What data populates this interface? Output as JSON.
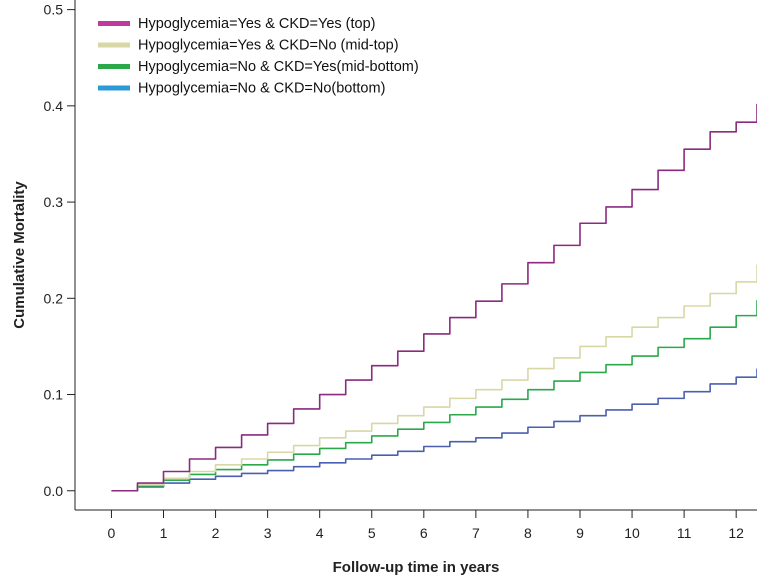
{
  "chart_data": {
    "type": "line",
    "title": "",
    "xlabel": "Follow-up time in years",
    "ylabel": "Cumulative Mortality",
    "xlim": [
      -0.7,
      12.4
    ],
    "ylim": [
      -0.02,
      0.51
    ],
    "x_ticks": [
      "0",
      "1",
      "2",
      "3",
      "4",
      "5",
      "6",
      "7",
      "8",
      "9",
      "10",
      "11",
      "12"
    ],
    "y_ticks": [
      "0.0",
      "0.1",
      "0.2",
      "0.3",
      "0.4",
      "0.5"
    ],
    "legend_position": "top-left",
    "series": [
      {
        "name": "Hypoglycemia=Yes & CKD=Yes (top)",
        "color": "#8b2a7e",
        "legend_color": "#c0399f",
        "x": [
          0,
          0.5,
          1,
          1.5,
          2,
          2.5,
          3,
          3.5,
          4,
          4.5,
          5,
          5.5,
          6,
          6.5,
          7,
          7.5,
          8,
          8.5,
          9,
          9.5,
          10,
          10.5,
          11,
          11.5,
          12,
          12.4
        ],
        "values": [
          0,
          0.008,
          0.02,
          0.033,
          0.045,
          0.058,
          0.07,
          0.085,
          0.1,
          0.115,
          0.13,
          0.145,
          0.163,
          0.18,
          0.197,
          0.215,
          0.237,
          0.255,
          0.278,
          0.295,
          0.313,
          0.333,
          0.355,
          0.373,
          0.383,
          0.402
        ]
      },
      {
        "name": "Hypoglycemia=Yes & CKD=No (mid-top)",
        "color": "#d8d8a6",
        "legend_color": "#d8d8a6",
        "x": [
          0,
          0.5,
          1,
          1.5,
          2,
          2.5,
          3,
          3.5,
          4,
          4.5,
          5,
          5.5,
          6,
          6.5,
          7,
          7.5,
          8,
          8.5,
          9,
          9.5,
          10,
          10.5,
          11,
          11.5,
          12,
          12.4
        ],
        "values": [
          0,
          0.006,
          0.013,
          0.02,
          0.027,
          0.033,
          0.04,
          0.047,
          0.055,
          0.062,
          0.07,
          0.078,
          0.087,
          0.096,
          0.105,
          0.115,
          0.127,
          0.138,
          0.15,
          0.16,
          0.17,
          0.18,
          0.192,
          0.205,
          0.217,
          0.235
        ]
      },
      {
        "name": "Hypoglycemia=No & CKD=Yes(mid-bottom)",
        "color": "#2aa84a",
        "legend_color": "#2aa84a",
        "x": [
          0,
          0.5,
          1,
          1.5,
          2,
          2.5,
          3,
          3.5,
          4,
          4.5,
          5,
          5.5,
          6,
          6.5,
          7,
          7.5,
          8,
          8.5,
          9,
          9.5,
          10,
          10.5,
          11,
          11.5,
          12,
          12.4
        ],
        "values": [
          0,
          0.005,
          0.011,
          0.017,
          0.022,
          0.027,
          0.032,
          0.038,
          0.044,
          0.05,
          0.057,
          0.064,
          0.071,
          0.079,
          0.087,
          0.095,
          0.105,
          0.114,
          0.123,
          0.131,
          0.14,
          0.149,
          0.158,
          0.17,
          0.182,
          0.198
        ]
      },
      {
        "name": "Hypoglycemia=No & CKD=No(bottom)",
        "color": "#4a5fb0",
        "legend_color": "#2b9ad6",
        "x": [
          0,
          0.5,
          1,
          1.5,
          2,
          2.5,
          3,
          3.5,
          4,
          4.5,
          5,
          5.5,
          6,
          6.5,
          7,
          7.5,
          8,
          8.5,
          9,
          9.5,
          10,
          10.5,
          11,
          11.5,
          12,
          12.4
        ],
        "values": [
          0,
          0.004,
          0.008,
          0.012,
          0.015,
          0.018,
          0.021,
          0.025,
          0.029,
          0.033,
          0.037,
          0.041,
          0.046,
          0.051,
          0.055,
          0.06,
          0.066,
          0.072,
          0.078,
          0.084,
          0.09,
          0.096,
          0.103,
          0.111,
          0.118,
          0.127
        ]
      }
    ]
  }
}
